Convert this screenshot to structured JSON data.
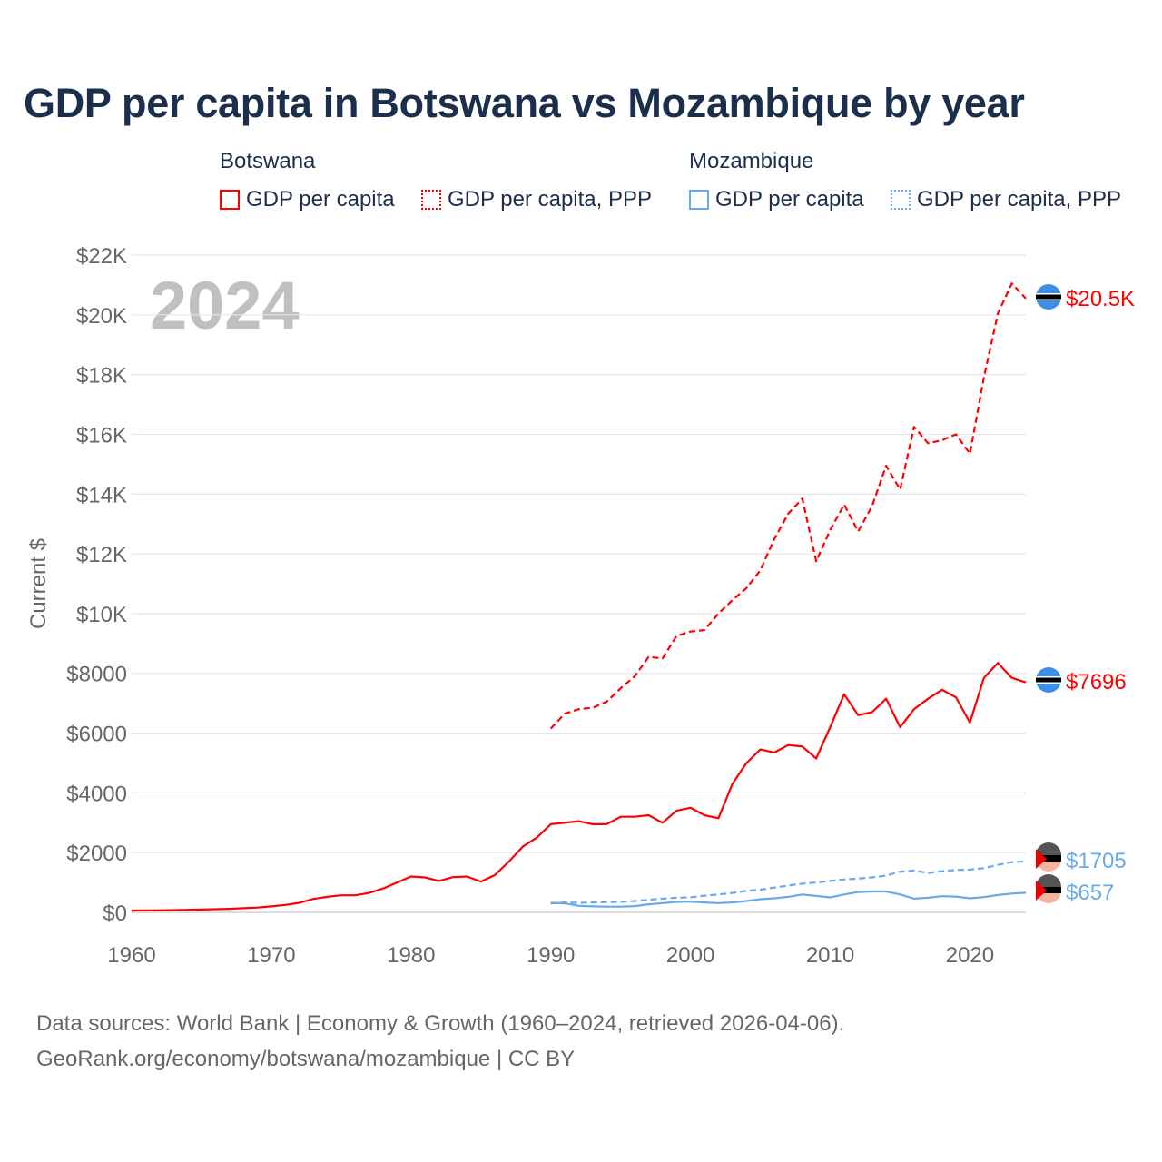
{
  "title": "GDP per capita in Botswana vs Mozambique by year",
  "legend": {
    "groups": [
      {
        "name": "Botswana",
        "items": [
          "GDP per capita",
          "GDP per capita, PPP"
        ]
      },
      {
        "name": "Mozambique",
        "items": [
          "GDP per capita",
          "GDP per capita, PPP"
        ]
      }
    ]
  },
  "colors": {
    "botswana": "#ff0000",
    "mozambique": "#6aa9ec",
    "grid": "#e6e6e6",
    "year_label": "#c0c0c0"
  },
  "year_label": "2024",
  "source": {
    "line1": "Data sources: World Bank | Economy & Growth (1960–2024, retrieved 2026-04-06).",
    "line2": "GeoRank.org/economy/botswana/mozambique | CC BY"
  },
  "chart_data": {
    "type": "line",
    "title": "GDP per capita in Botswana vs Mozambique by year",
    "xlabel": "",
    "ylabel": "Current $",
    "xlim": [
      1960,
      2024
    ],
    "ylim": [
      0,
      22000
    ],
    "x_ticks": [
      1960,
      1970,
      1980,
      1990,
      2000,
      2010,
      2020
    ],
    "x_tick_labels": [
      "1960",
      "1970",
      "1980",
      "1990",
      "2000",
      "2010",
      "2020"
    ],
    "y_ticks": [
      0,
      2000,
      4000,
      6000,
      8000,
      10000,
      12000,
      14000,
      16000,
      18000,
      20000,
      22000
    ],
    "y_tick_labels": [
      "$0",
      "$2000",
      "$4000",
      "$6000",
      "$8000",
      "$10K",
      "$12K",
      "$14K",
      "$16K",
      "$18K",
      "$20K",
      "$22K"
    ],
    "grid": true,
    "legend_position": "top",
    "series": [
      {
        "name": "Botswana GDP per capita",
        "country": "Botswana",
        "style": "solid",
        "end_label": "$7696",
        "start": 1960,
        "values": [
          60,
          65,
          70,
          75,
          85,
          95,
          105,
          120,
          140,
          160,
          200,
          250,
          320,
          450,
          520,
          570,
          570,
          650,
          800,
          1000,
          1200,
          1170,
          1050,
          1180,
          1200,
          1030,
          1250,
          1700,
          2200,
          2500,
          2950,
          3000,
          3050,
          2950,
          2950,
          3200,
          3200,
          3250,
          3000,
          3400,
          3500,
          3250,
          3150,
          4300,
          5000,
          5450,
          5350,
          5600,
          5550,
          5150,
          6200,
          7300,
          6600,
          6700,
          7150,
          6200,
          6800,
          7150,
          7450,
          7200,
          6350,
          7850,
          8350,
          7850,
          7696
        ]
      },
      {
        "name": "Botswana GDP per capita, PPP",
        "country": "Botswana",
        "style": "dashed",
        "end_label": "$20.5K",
        "start": 1990,
        "values": [
          6150,
          6650,
          6800,
          6850,
          7050,
          7500,
          7900,
          8550,
          8500,
          9250,
          9400,
          9450,
          10000,
          10450,
          10850,
          11450,
          12500,
          13350,
          13850,
          11750,
          12800,
          13650,
          12750,
          13600,
          14950,
          14150,
          16250,
          15700,
          15800,
          16000,
          15350,
          17900,
          20050,
          21050,
          20550
        ]
      },
      {
        "name": "Mozambique GDP per capita",
        "country": "Mozambique",
        "style": "solid",
        "end_label": "$657",
        "start": 1990,
        "values": [
          320,
          300,
          220,
          200,
          190,
          190,
          210,
          270,
          310,
          350,
          360,
          330,
          310,
          330,
          380,
          440,
          470,
          520,
          600,
          550,
          500,
          600,
          680,
          700,
          700,
          600,
          460,
          490,
          540,
          530,
          470,
          510,
          580,
          630,
          657
        ]
      },
      {
        "name": "Mozambique GDP per capita, PPP",
        "country": "Mozambique",
        "style": "dashed",
        "end_label": "$1705",
        "start": 1990,
        "values": [
          300,
          330,
          320,
          330,
          340,
          350,
          380,
          420,
          460,
          490,
          500,
          560,
          600,
          650,
          720,
          760,
          830,
          900,
          960,
          1000,
          1050,
          1100,
          1130,
          1170,
          1230,
          1360,
          1400,
          1320,
          1380,
          1420,
          1430,
          1480,
          1590,
          1680,
          1705
        ]
      }
    ]
  }
}
